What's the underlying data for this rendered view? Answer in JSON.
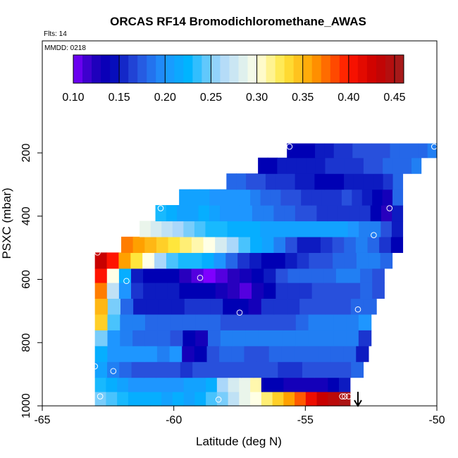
{
  "chart_data": {
    "type": "heatmap",
    "title": "ORCAS RF14 Bromodichloromethane_AWAS",
    "subtitle_flts": "Flts: 14",
    "subtitle_mmdd": "MMDD: 0218",
    "xlabel": "Latitude (deg N)",
    "ylabel": "PSXC (mbar)",
    "xlim": [
      -65,
      -50
    ],
    "ylim": [
      1000,
      0
    ],
    "x_ticks": [
      -65,
      -60,
      -55,
      -50
    ],
    "y_ticks": [
      200,
      400,
      600,
      800,
      1000
    ],
    "colorbar": {
      "min": 0.1,
      "max": 0.46,
      "ticks": [
        0.1,
        0.15,
        0.2,
        0.25,
        0.3,
        0.35,
        0.4,
        0.45
      ],
      "tick_labels": [
        "0.10",
        "0.15",
        "0.20",
        "0.25",
        "0.30",
        "0.35",
        "0.40",
        "0.45"
      ]
    },
    "rows": [
      {
        "p_top": 955,
        "p_bot": 1000,
        "x_from": -63.0,
        "x_to": -53.3,
        "values": [
          0.25,
          0.24,
          0.23,
          0.22,
          0.22,
          0.22,
          0.21,
          0.22,
          0.21,
          0.22,
          0.24,
          0.25,
          0.27,
          0.29,
          0.3,
          0.32,
          0.34,
          0.36,
          0.38,
          0.41,
          0.43,
          0.44,
          0.45
        ]
      },
      {
        "p_top": 910,
        "p_bot": 955,
        "x_from": -63.0,
        "x_to": -53.3,
        "values": [
          0.23,
          0.22,
          0.21,
          0.2,
          0.2,
          0.2,
          0.2,
          0.2,
          0.21,
          0.21,
          0.22,
          0.26,
          0.28,
          0.29,
          0.31,
          0.14,
          0.14,
          0.13,
          0.13,
          0.13,
          0.13,
          0.14,
          0.15
        ]
      },
      {
        "p_top": 860,
        "p_bot": 910,
        "x_from": -63.0,
        "x_to": -52.8,
        "values": [
          0.21,
          0.19,
          0.18,
          0.17,
          0.17,
          0.17,
          0.17,
          0.16,
          0.17,
          0.17,
          0.17,
          0.17,
          0.17,
          0.17,
          0.17,
          0.16,
          0.16,
          0.17,
          0.17,
          0.17,
          0.17,
          0.18
        ]
      },
      {
        "p_top": 810,
        "p_bot": 860,
        "x_from": -63.0,
        "x_to": -52.6,
        "values": [
          0.22,
          0.2,
          0.2,
          0.2,
          0.2,
          0.19,
          0.2,
          0.13,
          0.14,
          0.17,
          0.18,
          0.18,
          0.17,
          0.17,
          0.18,
          0.18,
          0.18,
          0.18,
          0.18,
          0.18,
          0.18,
          0.15
        ]
      },
      {
        "p_top": 760,
        "p_bot": 810,
        "x_from": -63.0,
        "x_to": -52.5,
        "values": [
          0.25,
          0.2,
          0.19,
          0.18,
          0.18,
          0.18,
          0.17,
          0.14,
          0.13,
          0.18,
          0.19,
          0.19,
          0.19,
          0.19,
          0.19,
          0.19,
          0.19,
          0.19,
          0.19,
          0.19,
          0.19,
          0.16
        ]
      },
      {
        "p_top": 710,
        "p_bot": 760,
        "x_from": -63.0,
        "x_to": -52.5,
        "values": [
          0.34,
          0.24,
          0.19,
          0.19,
          0.18,
          0.18,
          0.18,
          0.18,
          0.18,
          0.18,
          0.17,
          0.17,
          0.17,
          0.17,
          0.17,
          0.17,
          0.18,
          0.19,
          0.19,
          0.19,
          0.19,
          0.2
        ]
      },
      {
        "p_top": 660,
        "p_bot": 710,
        "x_from": -63.0,
        "x_to": -52.3,
        "values": [
          0.35,
          0.25,
          0.18,
          0.15,
          0.15,
          0.15,
          0.15,
          0.16,
          0.16,
          0.16,
          0.14,
          0.14,
          0.13,
          0.16,
          0.16,
          0.16,
          0.17,
          0.17,
          0.17,
          0.17,
          0.18,
          0.18
        ]
      },
      {
        "p_top": 610,
        "p_bot": 660,
        "x_from": -63.0,
        "x_to": -52.0,
        "values": [
          0.37,
          0.27,
          0.2,
          0.16,
          0.15,
          0.15,
          0.15,
          0.14,
          0.14,
          0.14,
          0.13,
          0.12,
          0.11,
          0.13,
          0.14,
          0.16,
          0.16,
          0.16,
          0.17,
          0.17,
          0.17,
          0.17,
          0.18,
          0.17
        ]
      },
      {
        "p_top": 565,
        "p_bot": 610,
        "x_from": -63.0,
        "x_to": -52.0,
        "values": [
          0.4,
          0.3,
          0.22,
          0.15,
          0.14,
          0.14,
          0.14,
          0.12,
          0.11,
          0.1,
          0.11,
          0.12,
          0.13,
          0.14,
          0.15,
          0.17,
          0.18,
          0.18,
          0.18,
          0.18,
          0.19,
          0.19,
          0.18,
          0.17
        ]
      },
      {
        "p_top": 515,
        "p_bot": 565,
        "x_from": -63.0,
        "x_to": -51.7,
        "values": [
          0.43,
          0.4,
          0.36,
          0.33,
          0.3,
          0.26,
          0.24,
          0.23,
          0.23,
          0.22,
          0.2,
          0.18,
          0.16,
          0.15,
          0.14,
          0.14,
          0.15,
          0.16,
          0.17,
          0.17,
          0.18,
          0.18,
          0.19,
          0.19,
          0.18
        ]
      },
      {
        "p_top": 465,
        "p_bot": 515,
        "x_from": -62.0,
        "x_to": -51.3,
        "values": [
          0.37,
          0.36,
          0.35,
          0.34,
          0.33,
          0.32,
          0.31,
          0.3,
          0.28,
          0.26,
          0.24,
          0.22,
          0.21,
          0.19,
          0.17,
          0.15,
          0.15,
          0.16,
          0.17,
          0.18,
          0.19,
          0.18,
          0.16,
          0.14
        ]
      },
      {
        "p_top": 415,
        "p_bot": 465,
        "x_from": -61.3,
        "x_to": -51.3,
        "values": [
          0.29,
          0.28,
          0.27,
          0.26,
          0.25,
          0.24,
          0.23,
          0.23,
          0.22,
          0.22,
          0.22,
          0.21,
          0.21,
          0.21,
          0.21,
          0.21,
          0.21,
          0.21,
          0.21,
          0.2,
          0.19,
          0.19,
          0.17,
          0.15
        ]
      },
      {
        "p_top": 365,
        "p_bot": 415,
        "x_from": -60.7,
        "x_to": -51.3,
        "values": [
          0.23,
          0.22,
          0.21,
          0.21,
          0.22,
          0.21,
          0.2,
          0.2,
          0.2,
          0.19,
          0.19,
          0.18,
          0.18,
          0.17,
          0.17,
          0.16,
          0.16,
          0.16,
          0.16,
          0.16,
          0.14,
          0.12,
          0.15
        ]
      },
      {
        "p_top": 315,
        "p_bot": 365,
        "x_from": -59.8,
        "x_to": -51.3,
        "values": [
          0.21,
          0.21,
          0.21,
          0.2,
          0.2,
          0.2,
          0.2,
          0.19,
          0.18,
          0.18,
          0.17,
          0.17,
          0.16,
          0.16,
          0.16,
          0.16,
          0.17,
          0.16,
          0.15,
          0.14,
          0.13,
          0.18
        ]
      },
      {
        "p_top": 265,
        "p_bot": 315,
        "x_from": -58.0,
        "x_to": -51.3,
        "values": [
          0.18,
          0.18,
          0.17,
          0.17,
          0.16,
          0.16,
          0.16,
          0.15,
          0.15,
          0.14,
          0.14,
          0.14,
          0.15,
          0.15,
          0.15,
          0.15,
          0.16,
          0.18
        ]
      },
      {
        "p_top": 215,
        "p_bot": 265,
        "x_from": -56.8,
        "x_to": -50.6,
        "values": [
          0.14,
          0.14,
          0.15,
          0.15,
          0.15,
          0.15,
          0.15,
          0.16,
          0.16,
          0.16,
          0.16,
          0.17,
          0.17,
          0.18,
          0.18,
          0.18,
          0.19
        ]
      },
      {
        "p_top": 170,
        "p_bot": 215,
        "x_from": -55.7,
        "x_to": -50.0,
        "values": [
          0.14,
          0.14,
          0.14,
          0.15,
          0.15,
          0.16,
          0.16,
          0.17,
          0.17,
          0.17,
          0.17,
          0.18,
          0.18,
          0.18,
          0.18,
          0.19
        ]
      }
    ],
    "sample_points": [
      {
        "lat": -55.6,
        "p": 180
      },
      {
        "lat": -50.1,
        "p": 180
      },
      {
        "lat": -60.5,
        "p": 375
      },
      {
        "lat": -51.8,
        "p": 375
      },
      {
        "lat": -52.4,
        "p": 460
      },
      {
        "lat": -62.9,
        "p": 515
      },
      {
        "lat": -61.8,
        "p": 605
      },
      {
        "lat": -59.0,
        "p": 595
      },
      {
        "lat": -57.5,
        "p": 705
      },
      {
        "lat": -53.0,
        "p": 695
      },
      {
        "lat": -63.0,
        "p": 875
      },
      {
        "lat": -62.3,
        "p": 890
      },
      {
        "lat": -62.8,
        "p": 970
      },
      {
        "lat": -58.3,
        "p": 980
      },
      {
        "lat": -53.6,
        "p": 970
      },
      {
        "lat": -53.5,
        "p": 970
      },
      {
        "lat": -53.35,
        "p": 970
      }
    ],
    "marker": {
      "type": "down-arrow",
      "lat": -53.0
    }
  }
}
